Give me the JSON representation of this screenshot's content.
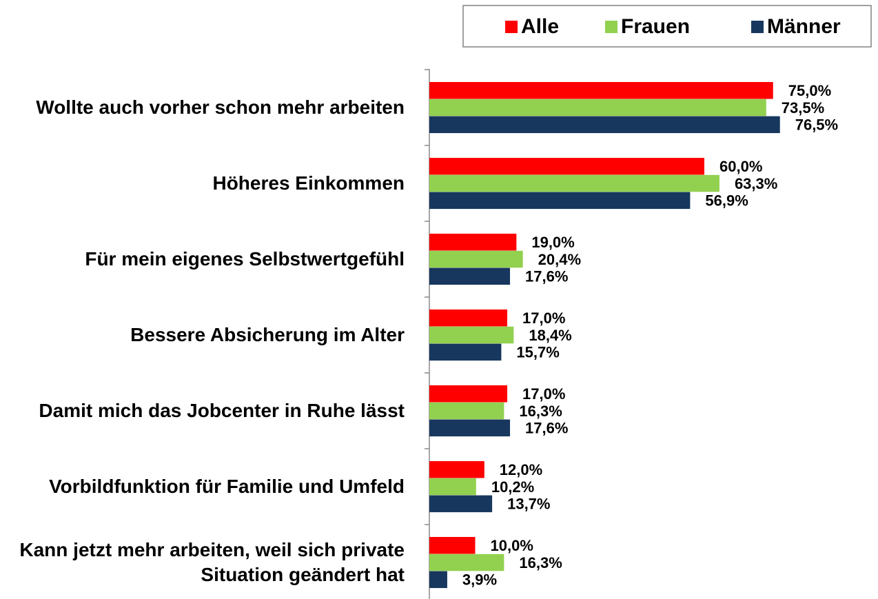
{
  "chart_data": {
    "type": "bar",
    "orientation": "horizontal",
    "categories": [
      "Wollte auch vorher schon mehr arbeiten",
      "Höheres Einkommen",
      "Für mein eigenes Selbstwertgefühl",
      "Bessere Absicherung im Alter",
      "Damit mich das Jobcenter in Ruhe lässt",
      "Vorbildfunktion für Familie und Umfeld",
      "Kann jetzt mehr arbeiten, weil sich private Situation geändert hat"
    ],
    "series": [
      {
        "name": "Alle",
        "color": "#ff0000",
        "values": [
          75.0,
          60.0,
          19.0,
          17.0,
          17.0,
          12.0,
          10.0
        ],
        "value_labels": [
          "75,0%",
          "60,0%",
          "19,0%",
          "17,0%",
          "17,0%",
          "12,0%",
          "10,0%"
        ]
      },
      {
        "name": "Frauen",
        "color": "#92d050",
        "values": [
          73.5,
          63.3,
          20.4,
          18.4,
          16.3,
          10.2,
          16.3
        ],
        "value_labels": [
          "73,5%",
          "63,3%",
          "20,4%",
          "18,4%",
          "16,3%",
          "10,2%",
          "16,3%"
        ]
      },
      {
        "name": "Männer",
        "color": "#17375e",
        "values": [
          76.5,
          56.9,
          17.6,
          15.7,
          17.6,
          13.7,
          3.9
        ],
        "value_labels": [
          "76,5%",
          "56,9%",
          "17,6%",
          "15,7%",
          "17,6%",
          "13,7%",
          "3,9%"
        ]
      }
    ],
    "xlim": [
      0,
      100
    ],
    "legend": "top-right"
  }
}
